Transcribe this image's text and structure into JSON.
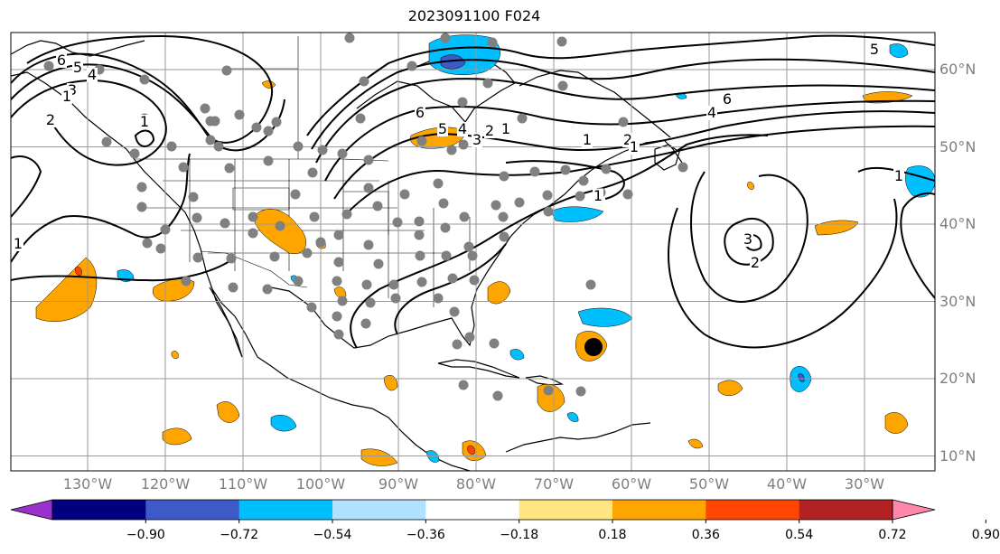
{
  "title": "2023091100 F024",
  "lat_labels": [
    "60°N",
    "50°N",
    "40°N",
    "30°N",
    "20°N",
    "10°N"
  ],
  "lon_labels": [
    "130°W",
    "120°W",
    "110°W",
    "100°W",
    "90°W",
    "80°W",
    "70°W",
    "60°W",
    "50°W",
    "40°W",
    "30°W"
  ],
  "contour_labels": [
    "6",
    "5",
    "4",
    "3",
    "2",
    "1",
    "6",
    "5",
    "4",
    "3",
    "2",
    "1",
    "6",
    "4",
    "2",
    "1",
    "5",
    "1",
    "3",
    "2",
    "1",
    "1",
    "1",
    "1"
  ],
  "colorbar": {
    "ticks": [
      "−0.90",
      "−0.72",
      "−0.54",
      "−0.36",
      "−0.18",
      "0.18",
      "0.36",
      "0.54",
      "0.72",
      "0.90"
    ],
    "colors": [
      "#9932cc",
      "#000080",
      "#3c5ac8",
      "#00bfff",
      "#b0e2ff",
      "#ffffff",
      "#ffe680",
      "#ffa500",
      "#ff4500",
      "#b22222",
      "#ff88aa"
    ]
  },
  "colors": {
    "ocean": "#ffffff",
    "gridline": "#9a9a9a",
    "station_dot": "#808080",
    "positive_fill": "#ffa500",
    "negative_fill": "#00bfff",
    "deep_negative_fill": "#3c5ac8",
    "strong_positive_fill": "#ff4500"
  },
  "storm_marker": {
    "lon": -65,
    "lat": 24
  }
}
